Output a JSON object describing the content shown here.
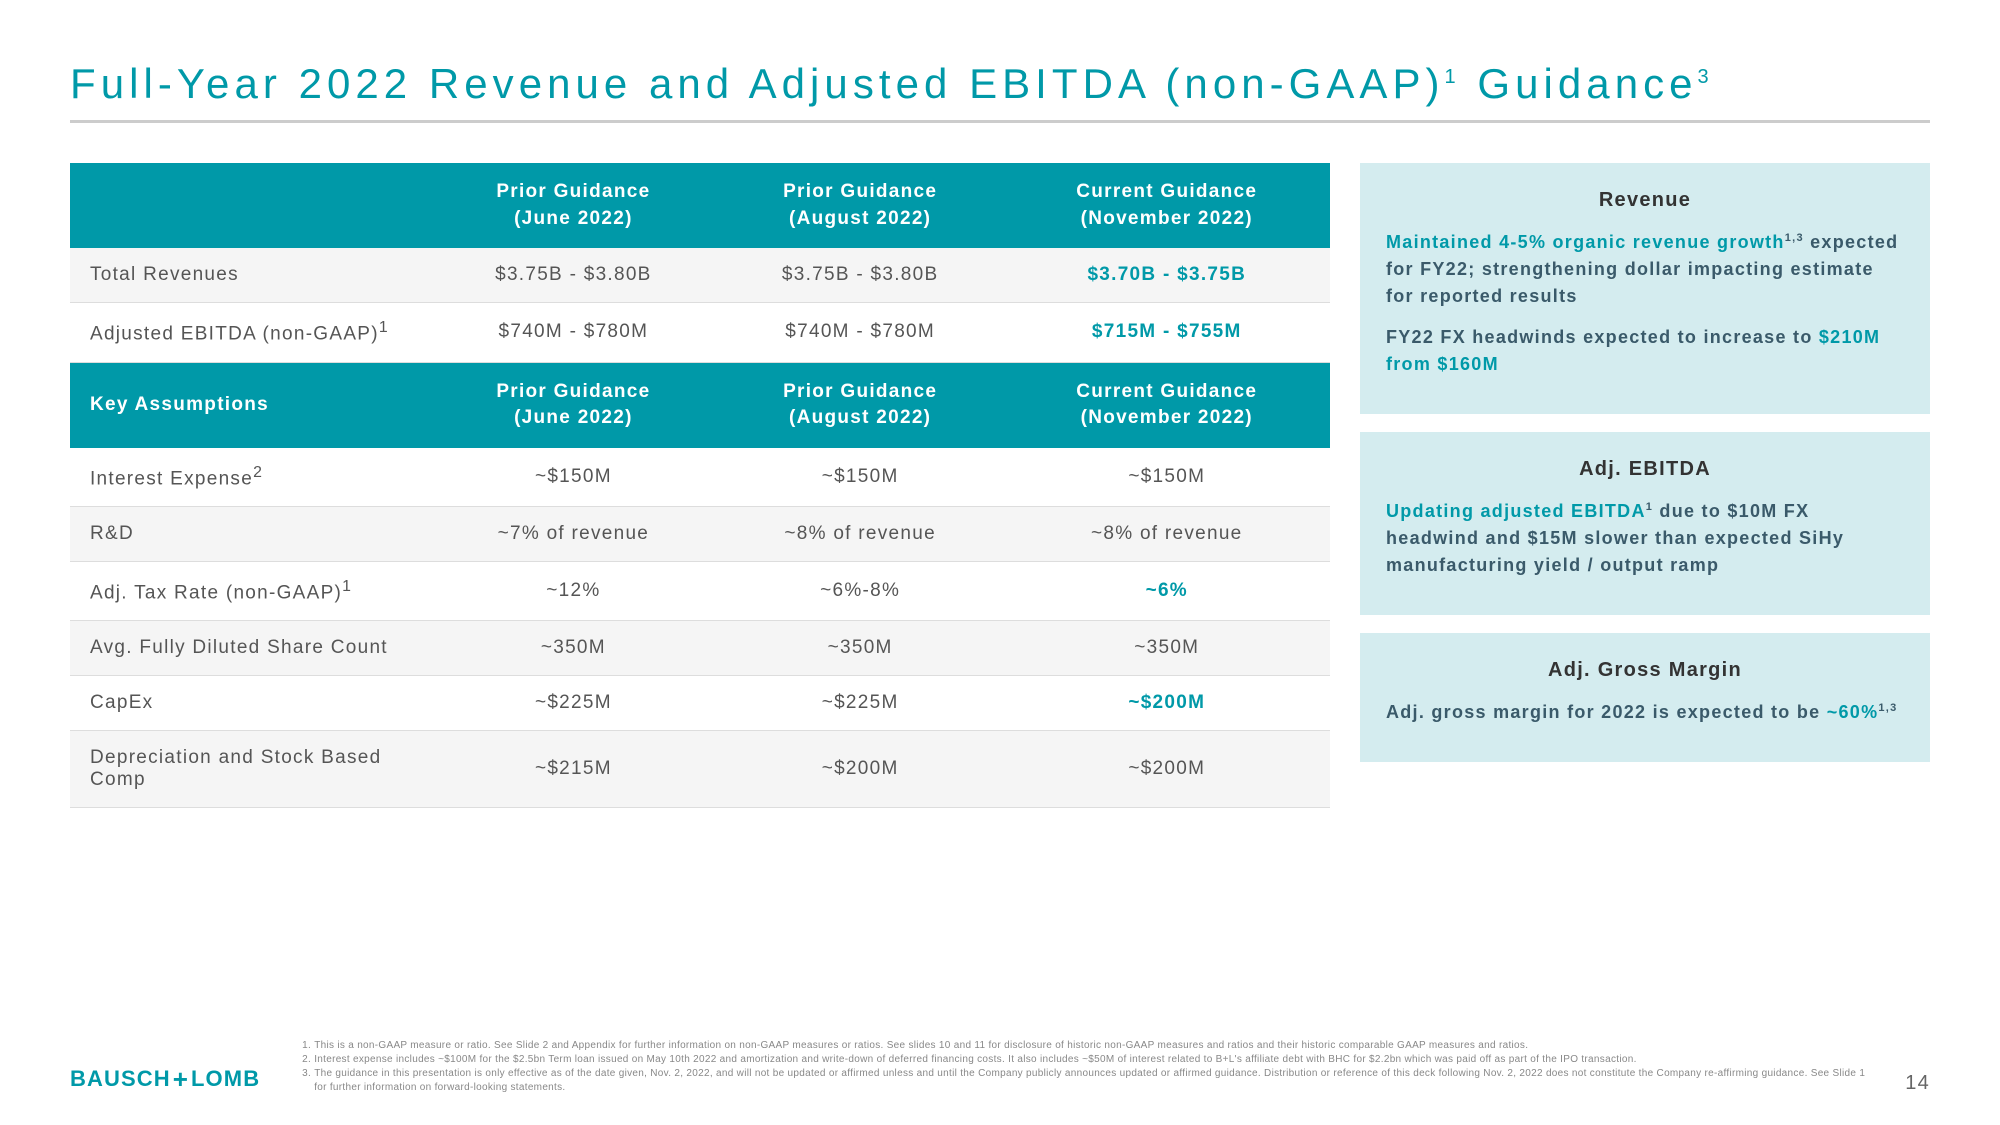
{
  "title": {
    "main": "Full-Year 2022 Revenue and Adjusted EBITDA (non-GAAP)",
    "sup1": "1",
    "mid": " Guidance",
    "sup2": "3"
  },
  "columns": {
    "c0": "",
    "c1a": "Prior Guidance",
    "c1b": "(June 2022)",
    "c2a": "Prior Guidance",
    "c2b": "(August 2022)",
    "c3a": "Current Guidance",
    "c3b": "(November 2022)",
    "k0": "Key Assumptions",
    "k1a": "Prior Guidance",
    "k1b": "(June 2022)",
    "k2a": "Prior Guidance",
    "k2b": "(August 2022)",
    "k3a": "Current Guidance",
    "k3b": "(November 2022)"
  },
  "rows": {
    "r1": {
      "label": "Total Revenues",
      "v1": "$3.75B - $3.80B",
      "v2": "$3.75B - $3.80B",
      "v3": "$3.70B - $3.75B"
    },
    "r2": {
      "label": "Adjusted EBITDA (non-GAAP)",
      "sup": "1",
      "v1": "$740M - $780M",
      "v2": "$740M - $780M",
      "v3": "$715M - $755M"
    },
    "r3": {
      "label": "Interest Expense",
      "sup": "2",
      "v1": "~$150M",
      "v2": "~$150M",
      "v3": "~$150M"
    },
    "r4": {
      "label": "R&D",
      "v1": "~7% of revenue",
      "v2": "~8% of revenue",
      "v3": "~8% of revenue"
    },
    "r5": {
      "label": "Adj. Tax Rate (non-GAAP)",
      "sup": "1",
      "v1": "~12%",
      "v2": "~6%-8%",
      "v3": "~6%"
    },
    "r6": {
      "label": "Avg. Fully Diluted Share Count",
      "v1": "~350M",
      "v2": "~350M",
      "v3": "~350M"
    },
    "r7": {
      "label": "CapEx",
      "v1": "~$225M",
      "v2": "~$225M",
      "v3": "~$200M"
    },
    "r8": {
      "label": "Depreciation and Stock Based Comp",
      "v1": "~$215M",
      "v2": "~$200M",
      "v3": "~$200M"
    }
  },
  "side": {
    "b1": {
      "title": "Revenue",
      "p1a": "Maintained 4-5% organic revenue growth",
      "p1b": " expected for FY22; strengthening dollar impacting estimate for reported results",
      "p2a": "FY22 FX headwinds expected to increase to ",
      "p2b": "$210M from $160M"
    },
    "b2": {
      "title": "Adj. EBITDA",
      "p1a": "Updating adjusted EBITDA",
      "p1b": " due to $10M FX headwind and $15M slower than expected SiHy manufacturing yield / output ramp"
    },
    "b3": {
      "title": "Adj. Gross Margin",
      "p1a": "Adj. gross margin for 2022 is expected to be ",
      "p1b": "~60%"
    }
  },
  "footnotes": {
    "f1": "This is a non-GAAP measure or ratio. See Slide 2 and Appendix for further information on non-GAAP measures or ratios. See slides 10 and 11 for disclosure of historic non-GAAP measures and ratios and their historic comparable GAAP measures and ratios.",
    "f2": "Interest expense includes ~$100M for the $2.5bn Term loan issued on May 10th 2022 and amortization and write-down of deferred financing costs. It also includes ~$50M of interest related to B+L's affiliate debt with BHC for $2.2bn which was paid off as part of the IPO transaction.",
    "f3": "The guidance in this presentation is only effective as of the date given, Nov. 2, 2022, and will not be updated or affirmed unless and until the Company publicly announces updated or affirmed guidance. Distribution or reference of this deck following Nov. 2, 2022 does not constitute the Company re-affirming guidance. See Slide 1 for further information on forward-looking statements."
  },
  "logo": {
    "a": "BAUSCH",
    "b": "LOMB"
  },
  "page": "14"
}
